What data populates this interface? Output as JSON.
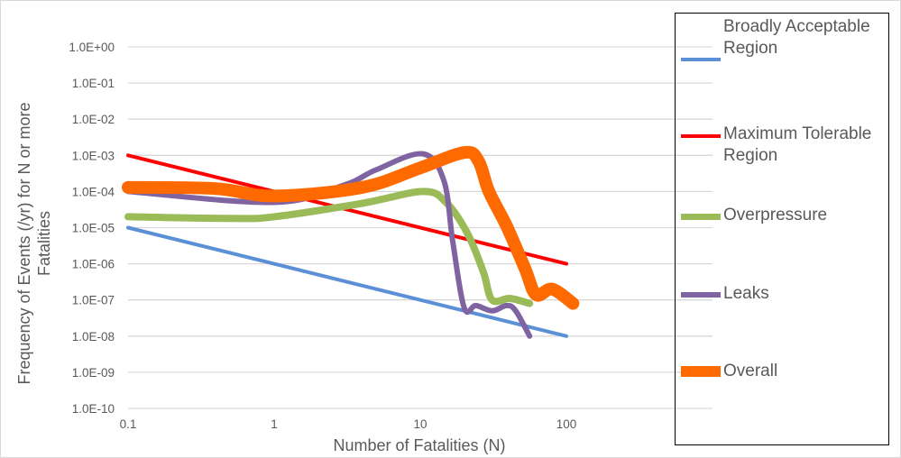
{
  "chart_data": {
    "type": "line",
    "title": "",
    "xlabel": "Number of Fatalities (N)",
    "ylabel_lines": [
      "Frequency of  Events (/yr) for N or more",
      "Fatalities"
    ],
    "x_scale": "log",
    "y_scale": "log",
    "xlim": [
      0.1,
      1000
    ],
    "ylim": [
      1e-10,
      1
    ],
    "x_tick_labels": [
      "0.1",
      "1",
      "10",
      "100"
    ],
    "x_tick_values": [
      0.1,
      1,
      10,
      100
    ],
    "y_tick_labels": [
      "1.0E+00",
      "1.0E-01",
      "1.0E-02",
      "1.0E-03",
      "1.0E-04",
      "1.0E-05",
      "1.0E-06",
      "1.0E-07",
      "1.0E-08",
      "1.0E-09",
      "1.0E-10"
    ],
    "y_tick_values": [
      1,
      0.1,
      0.01,
      0.001,
      0.0001,
      1e-05,
      1e-06,
      1e-07,
      1e-08,
      1e-09,
      1e-10
    ],
    "grid": "horizontal",
    "legend_position": "right",
    "series": [
      {
        "name": "Broadly Acceptable Region",
        "color": "#5b8fd6",
        "width": 4,
        "x": [
          0.1,
          100
        ],
        "y": [
          1e-05,
          1e-08
        ]
      },
      {
        "name": "Maximum Tolerable Region",
        "color": "#ff0000",
        "width": 4,
        "x": [
          0.1,
          100
        ],
        "y": [
          0.001,
          1e-06
        ]
      },
      {
        "name": "Overpressure",
        "color": "#9bbb59",
        "width": 8,
        "x": [
          0.1,
          0.5,
          1,
          4,
          10.4,
          15,
          21,
          27,
          31,
          41,
          56
        ],
        "y": [
          2e-05,
          1.8e-05,
          2e-05,
          4.7e-05,
          0.0001,
          5e-05,
          7e-06,
          6e-07,
          1e-07,
          1.1e-07,
          8e-08
        ]
      },
      {
        "name": "Leaks",
        "color": "#8064a2",
        "width": 6,
        "x": [
          0.1,
          1,
          3,
          5,
          10.4,
          14.5,
          16.7,
          20,
          24,
          31,
          39,
          45,
          56
        ],
        "y": [
          0.0001,
          5e-05,
          0.00015,
          0.0004,
          0.0011,
          0.0002,
          4e-06,
          6e-08,
          7e-08,
          5e-08,
          7e-08,
          5e-08,
          1e-08
        ]
      },
      {
        "name": "Overall",
        "color": "#ff6a00",
        "width": 14,
        "x": [
          0.1,
          0.4,
          1,
          4,
          10,
          20,
          25,
          29.5,
          39,
          52,
          62,
          80,
          111
        ],
        "y": [
          0.00013,
          0.00012,
          7.5e-05,
          0.00013,
          0.00045,
          0.0012,
          0.0007,
          0.0001,
          1.1e-05,
          7.5e-07,
          1.4e-07,
          2e-07,
          8e-08
        ]
      }
    ]
  },
  "legend": {
    "items": [
      {
        "label": "Broadly Acceptable Region",
        "color": "#5b8fd6"
      },
      {
        "label": "Maximum Tolerable Region",
        "color": "#ff0000"
      },
      {
        "label": "Overpressure",
        "color": "#9bbb59"
      },
      {
        "label": "Leaks",
        "color": "#8064a2"
      },
      {
        "label": "Overall",
        "color": "#ff6a00"
      }
    ]
  }
}
